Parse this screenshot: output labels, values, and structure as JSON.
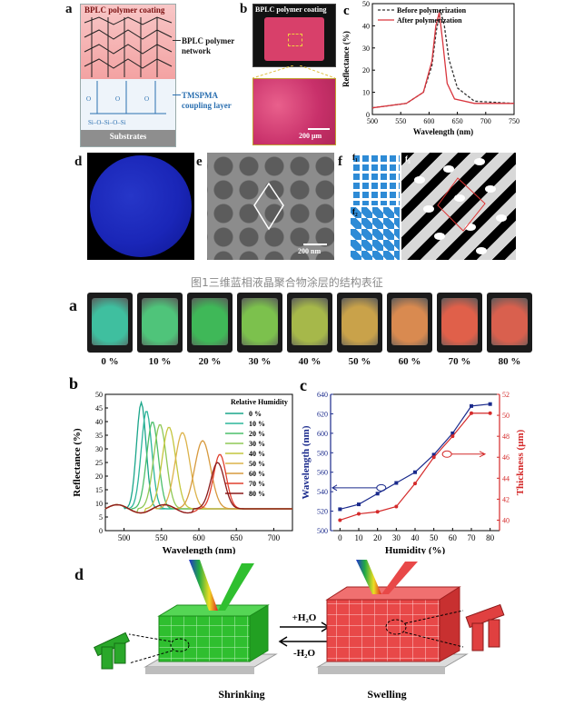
{
  "figure1": {
    "caption": "图1三维蓝相液晶聚合物涂层的结构表征",
    "panel_a": {
      "label": "a",
      "top_label": "BPLC polymer coating",
      "network_label": "BPLC polymer\nnetwork",
      "coupling_label": "TMSPMA\ncoupling layer",
      "substrate_label": "Substrates"
    },
    "panel_b": {
      "label": "b",
      "title": "BPLC polymer coating",
      "scale": "200 μm"
    },
    "panel_d": {
      "label": "d"
    },
    "panel_e": {
      "label": "e",
      "scale": "200 nm"
    },
    "panel_f": {
      "label": "f",
      "sub1": "f₁",
      "sub2": "f₂",
      "sub3": "f₃"
    }
  },
  "figure2": {
    "panel_a": {
      "label": "a",
      "humidities": [
        "0 %",
        "10 %",
        "20 %",
        "30 %",
        "40 %",
        "50 %",
        "60 %",
        "70 %",
        "80 %"
      ],
      "colors": [
        "#3fbf9f",
        "#4fc47a",
        "#3fb858",
        "#7cc14d",
        "#a6b84a",
        "#c9a24a",
        "#d98a50",
        "#e0604a",
        "#d9604e"
      ]
    },
    "panel_d": {
      "label": "d",
      "left_caption": "Shrinking",
      "right_caption": "Swelling",
      "arrow_top": "+H₂O",
      "arrow_bottom": "-H₂O"
    }
  },
  "chart_data": [
    {
      "id": "fig1c",
      "panel": "c",
      "type": "line",
      "xlabel": "Wavelength (nm)",
      "ylabel": "Reflectance (%)",
      "xlim": [
        500,
        750
      ],
      "ylim": [
        0,
        50
      ],
      "xticks": [
        500,
        550,
        600,
        650,
        700,
        750
      ],
      "yticks": [
        0,
        10,
        20,
        30,
        40,
        50
      ],
      "series": [
        {
          "name": "Before polymerization",
          "style": "dashed",
          "color": "#333333",
          "x": [
            500,
            560,
            590,
            605,
            613,
            620,
            627,
            635,
            650,
            680,
            750
          ],
          "y": [
            3,
            5,
            10,
            22,
            38,
            47,
            40,
            25,
            12,
            6,
            5
          ]
        },
        {
          "name": "After polymerization",
          "style": "solid",
          "color": "#d9363e",
          "x": [
            500,
            560,
            590,
            605,
            612,
            618,
            624,
            632,
            645,
            680,
            750
          ],
          "y": [
            3,
            5,
            10,
            24,
            40,
            46,
            33,
            14,
            7,
            5,
            5
          ]
        }
      ]
    },
    {
      "id": "fig2b",
      "panel": "b",
      "type": "line",
      "xlabel": "Wavelength (nm)",
      "ylabel": "Reflectance (%)",
      "legend_title": "Relative Humidity",
      "xlim": [
        475,
        725
      ],
      "ylim": [
        0,
        50
      ],
      "xticks": [
        500,
        550,
        600,
        650,
        700
      ],
      "yticks": [
        0,
        5,
        10,
        15,
        20,
        25,
        30,
        35,
        40,
        45,
        50
      ],
      "series": [
        {
          "name": "0 %",
          "color": "#1aa58a",
          "peak": 523,
          "height": 47,
          "width": 9
        },
        {
          "name": "10 %",
          "color": "#2bb59a",
          "peak": 530,
          "height": 44,
          "width": 10
        },
        {
          "name": "20 %",
          "color": "#4cbf6a",
          "peak": 538,
          "height": 40,
          "width": 11
        },
        {
          "name": "30 %",
          "color": "#8fc856",
          "peak": 548,
          "height": 39,
          "width": 12
        },
        {
          "name": "40 %",
          "color": "#c4c63e",
          "peak": 560,
          "height": 38,
          "width": 13
        },
        {
          "name": "50 %",
          "color": "#dcb34a",
          "peak": 578,
          "height": 36,
          "width": 14
        },
        {
          "name": "60 %",
          "color": "#d79a3e",
          "peak": 605,
          "height": 33,
          "width": 15
        },
        {
          "name": "70 %",
          "color": "#e0412f",
          "peak": 628,
          "height": 28,
          "width": 12
        },
        {
          "name": "80 %",
          "color": "#8b1a1a",
          "peak": 625,
          "height": 25,
          "width": 13
        }
      ]
    },
    {
      "id": "fig2c",
      "panel": "c",
      "type": "line",
      "xlabel": "Humidity (%)",
      "ylabel": "Wavelength (nm)",
      "ylabel2": "Thickness (μm)",
      "xlim": [
        -5,
        85
      ],
      "ylim": [
        500,
        640
      ],
      "ylim2": [
        39,
        52
      ],
      "xticks": [
        0,
        10,
        20,
        30,
        40,
        50,
        60,
        70,
        80
      ],
      "yticks": [
        500,
        520,
        540,
        560,
        580,
        600,
        620,
        640
      ],
      "yticks2": [
        40,
        42,
        44,
        46,
        48,
        50,
        52
      ],
      "series": [
        {
          "name": "Wavelength",
          "axis": "left",
          "color": "#1a2a8c",
          "x": [
            0,
            10,
            20,
            30,
            40,
            50,
            60,
            70,
            80
          ],
          "y": [
            522,
            527,
            538,
            549,
            560,
            578,
            600,
            628,
            630
          ]
        },
        {
          "name": "Thickness",
          "axis": "right",
          "color": "#d42a2a",
          "x": [
            0,
            10,
            20,
            30,
            40,
            50,
            60,
            70,
            80
          ],
          "y": [
            40.0,
            40.6,
            40.8,
            41.3,
            43.5,
            46.0,
            48.0,
            50.2,
            50.2
          ]
        }
      ]
    }
  ]
}
